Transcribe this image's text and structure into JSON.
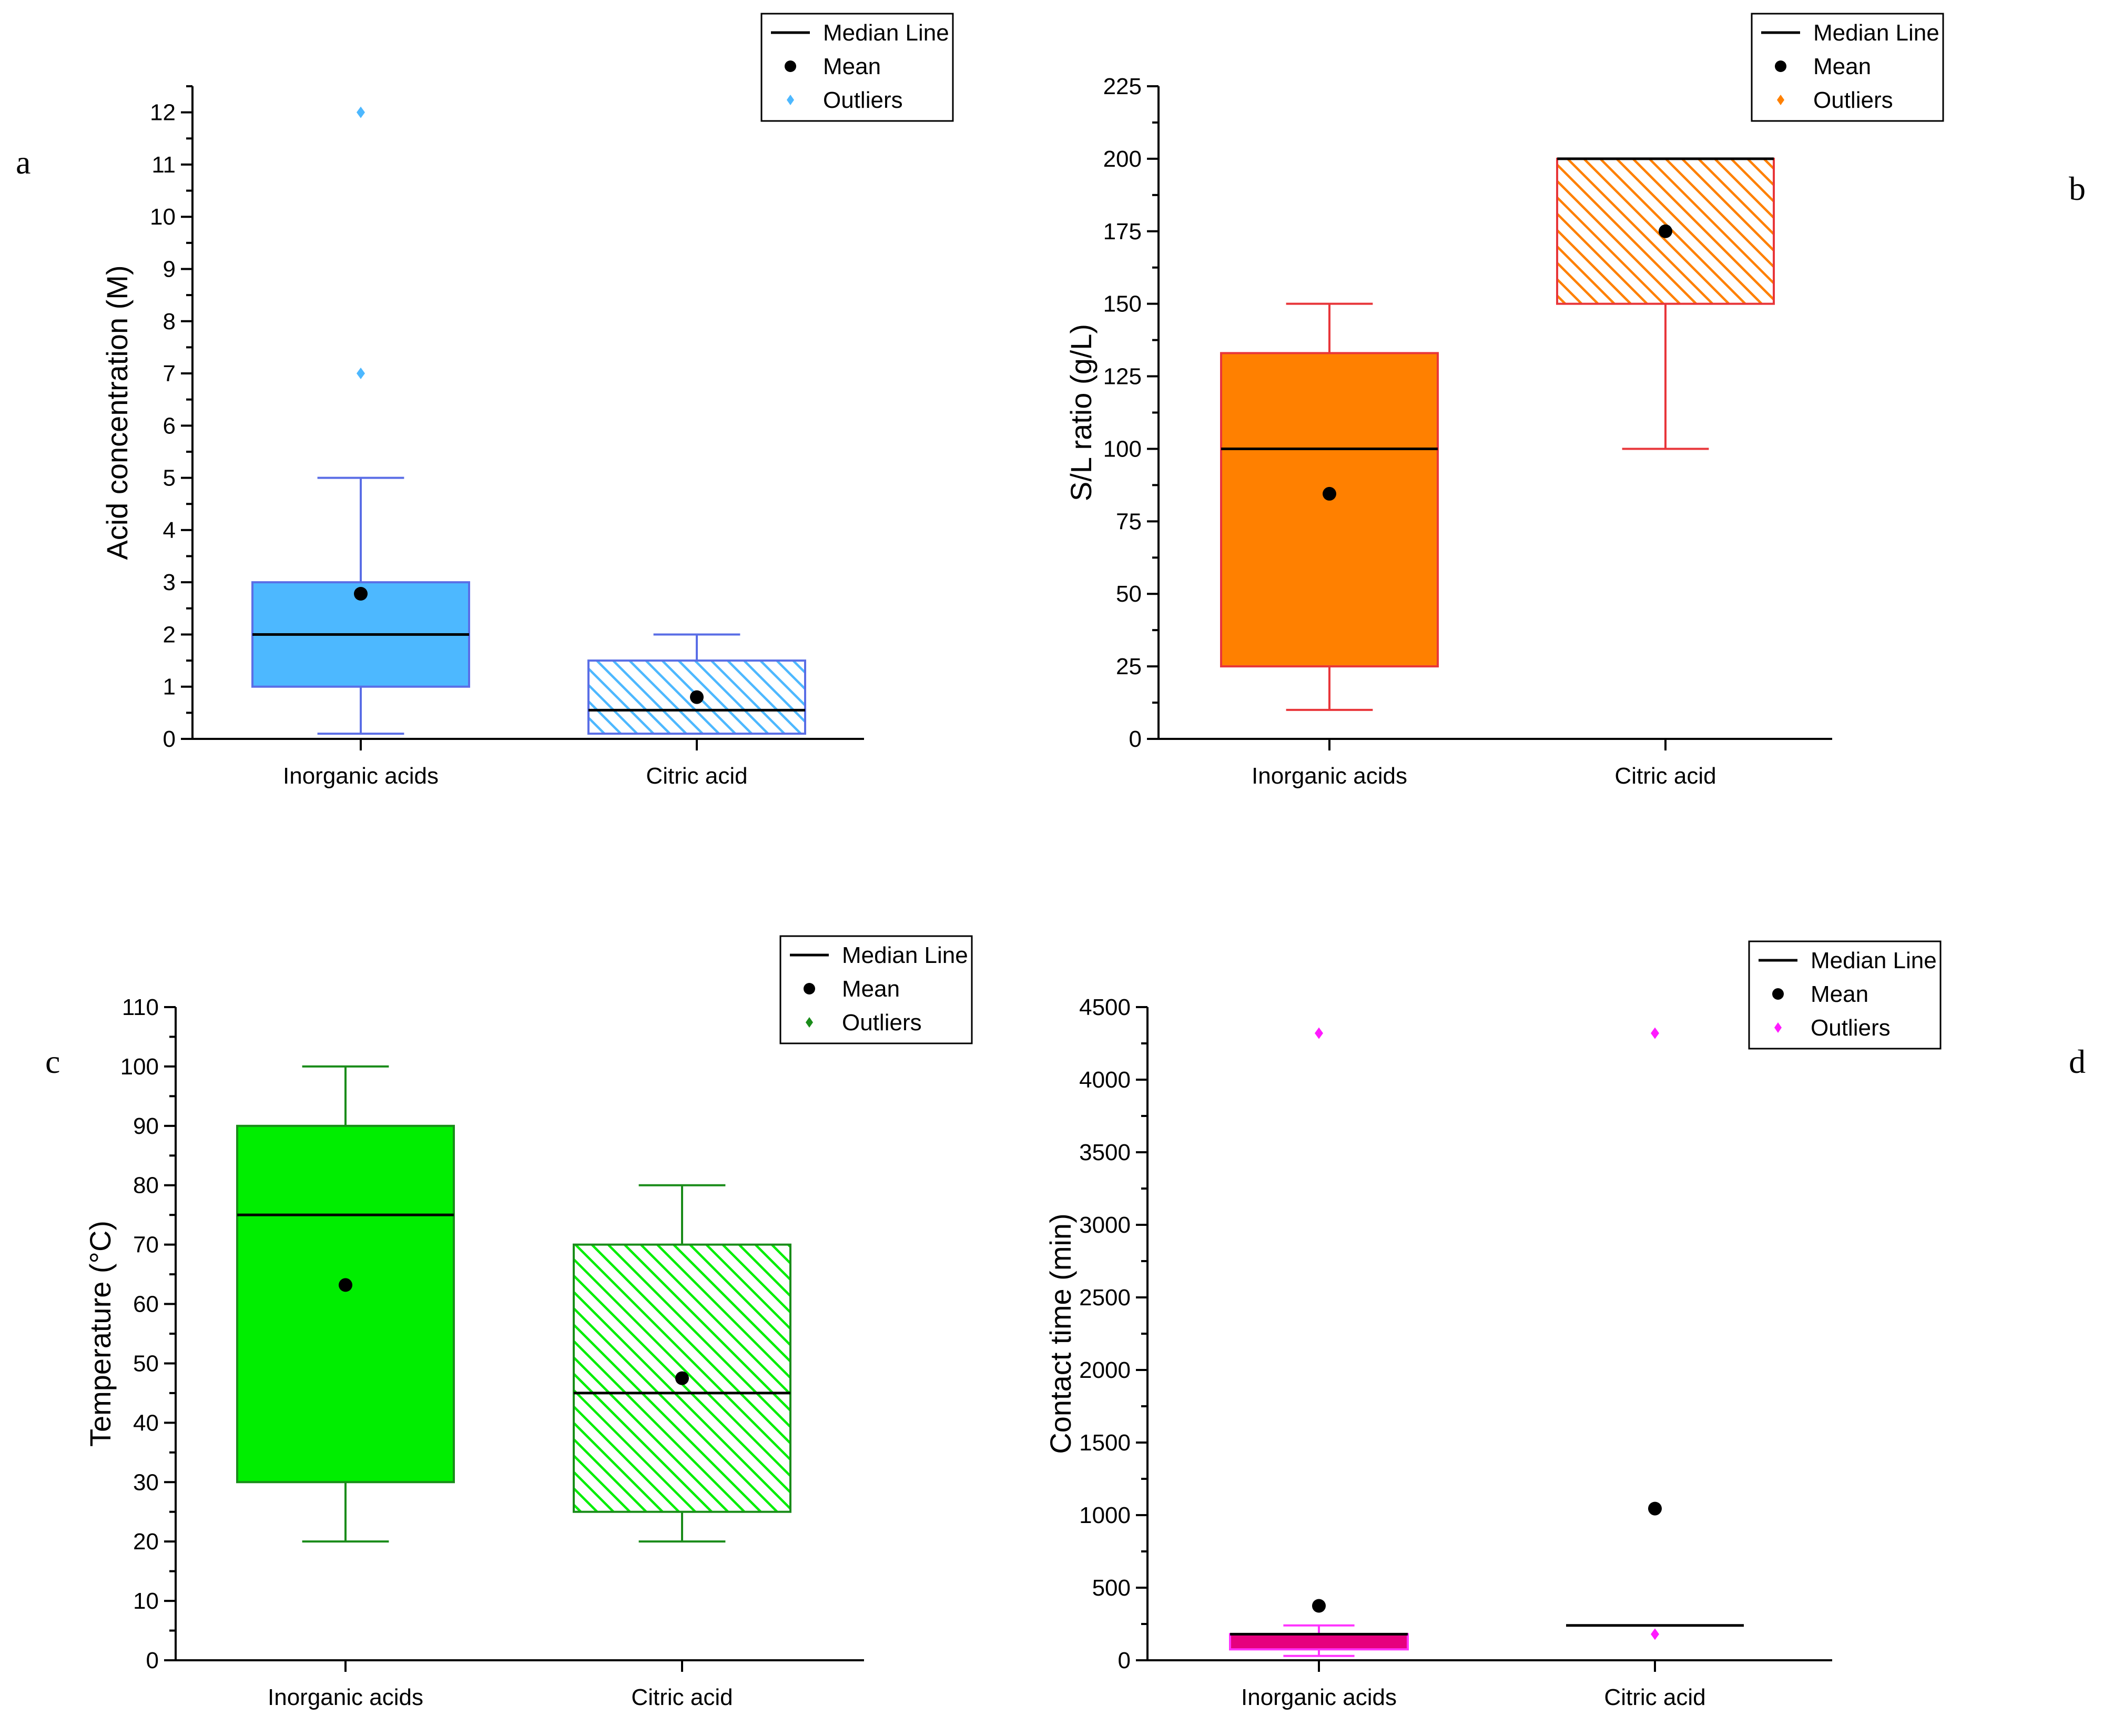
{
  "chart_data": [
    {
      "type": "box",
      "panel": "a",
      "ylabel": "Acid concentration (M)",
      "ylim": [
        0,
        12.5
      ],
      "yticks": [
        0,
        1,
        2,
        3,
        4,
        5,
        6,
        7,
        8,
        9,
        10,
        11,
        12
      ],
      "minor_ticks": true,
      "categories": [
        "Inorganic acids",
        "Citric acid"
      ],
      "boxes": [
        {
          "category": "Inorganic acids",
          "whisker_low": 0.1,
          "q1": 1,
          "median": 2,
          "q3": 3,
          "whisker_high": 5,
          "mean": 2.78,
          "outliers": [
            7,
            12
          ],
          "pattern": "solid"
        },
        {
          "category": "Citric acid",
          "whisker_low": 0.1,
          "q1": 0.1,
          "median": 0.55,
          "q3": 1.5,
          "whisker_high": 2,
          "mean": 0.8,
          "outliers": [],
          "pattern": "hatch"
        }
      ],
      "colors": {
        "fill": "#4db8ff",
        "line": "#5a6ee6",
        "outlier": "#4db8ff"
      },
      "legend": {
        "median": "Median Line",
        "mean": "Mean",
        "outliers": "Outliers"
      }
    },
    {
      "type": "box",
      "panel": "b",
      "ylabel": "S/L ratio (g/L)",
      "ylim": [
        0,
        225
      ],
      "yticks": [
        0,
        25,
        50,
        75,
        100,
        125,
        150,
        175,
        200,
        225
      ],
      "minor_ticks": true,
      "categories": [
        "Inorganic acids",
        "Citric acid"
      ],
      "boxes": [
        {
          "category": "Inorganic acids",
          "whisker_low": 10,
          "q1": 25,
          "median": 100,
          "q3": 133,
          "whisker_high": 150,
          "mean": 84.5,
          "outliers": [],
          "pattern": "solid"
        },
        {
          "category": "Citric acid",
          "whisker_low": 100,
          "q1": 150,
          "median": 200,
          "q3": 200,
          "whisker_high": 200,
          "mean": 175,
          "outliers": [],
          "pattern": "hatch"
        }
      ],
      "colors": {
        "fill": "#ff8000",
        "line": "#e8363a",
        "outlier": "#ff8000"
      },
      "legend": {
        "median": "Median Line",
        "mean": "Mean",
        "outliers": "Outliers"
      }
    },
    {
      "type": "box",
      "panel": "c",
      "ylabel": "Temperature (°C)",
      "ylim": [
        0,
        110
      ],
      "yticks": [
        0,
        10,
        20,
        30,
        40,
        50,
        60,
        70,
        80,
        90,
        100,
        110
      ],
      "minor_ticks": true,
      "categories": [
        "Inorganic acids",
        "Citric acid"
      ],
      "boxes": [
        {
          "category": "Inorganic acids",
          "whisker_low": 20,
          "q1": 30,
          "median": 75,
          "q3": 90,
          "whisker_high": 100,
          "mean": 63.2,
          "outliers": [],
          "pattern": "solid"
        },
        {
          "category": "Citric acid",
          "whisker_low": 20,
          "q1": 25,
          "median": 45,
          "q3": 70,
          "whisker_high": 80,
          "mean": 47.5,
          "outliers": [],
          "pattern": "hatch"
        }
      ],
      "colors": {
        "fill": "#00ee00",
        "line": "#1a8c1a",
        "outlier": "#1a8c1a"
      },
      "legend": {
        "median": "Median Line",
        "mean": "Mean",
        "outliers": "Outliers"
      }
    },
    {
      "type": "box",
      "panel": "d",
      "ylabel": "Contact time (min)",
      "ylim": [
        0,
        4500
      ],
      "yticks": [
        0,
        500,
        1000,
        1500,
        2000,
        2500,
        3000,
        3500,
        4000,
        4500
      ],
      "minor_ticks": true,
      "categories": [
        "Inorganic acids",
        "Citric acid"
      ],
      "boxes": [
        {
          "category": "Inorganic acids",
          "whisker_low": 30,
          "q1": 75,
          "median": 180,
          "q3": 180,
          "whisker_high": 240,
          "mean": 375,
          "outliers": [
            4320
          ],
          "pattern": "solid"
        },
        {
          "category": "Citric acid",
          "whisker_low": 240,
          "q1": 240,
          "median": 240,
          "q3": 240,
          "whisker_high": 240,
          "mean": 1045,
          "outliers": [
            180,
            4320
          ],
          "pattern": "hatch"
        }
      ],
      "colors": {
        "fill": "#e6007e",
        "line": "#ff33ff",
        "outlier": "#ff1aff"
      },
      "legend": {
        "median": "Median Line",
        "mean": "Mean",
        "outliers": "Outliers"
      }
    }
  ]
}
